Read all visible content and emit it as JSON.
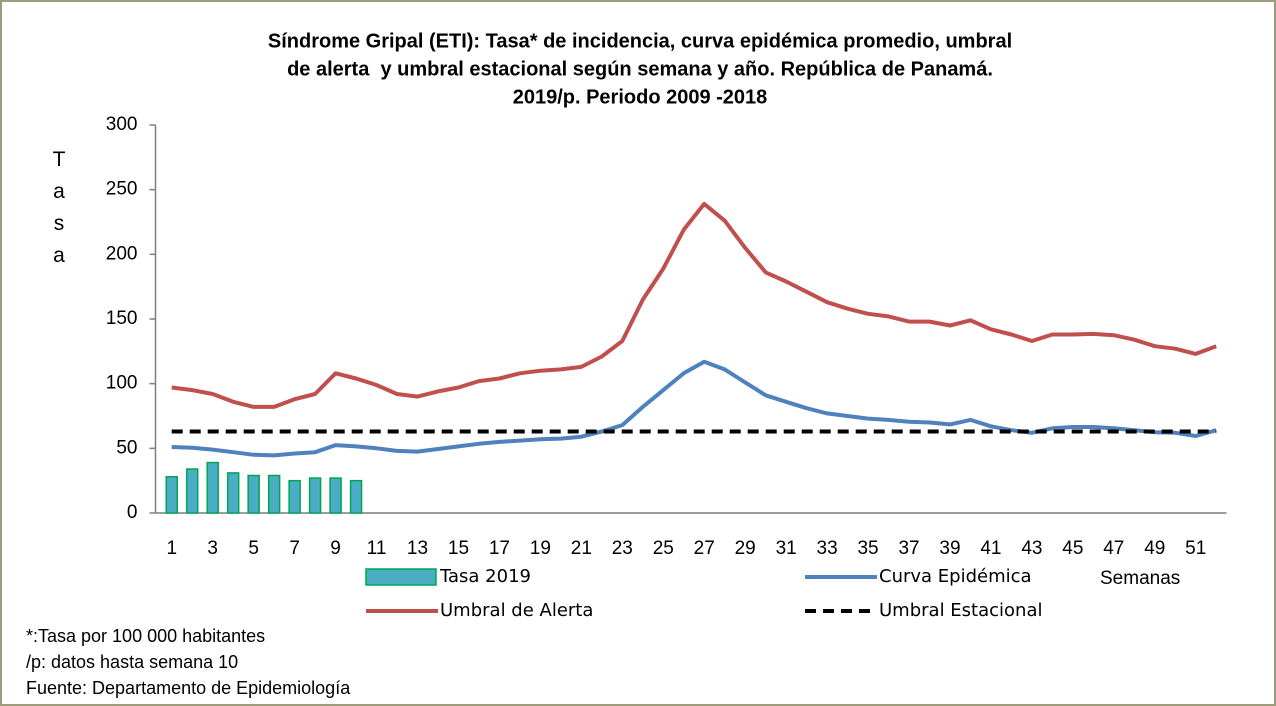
{
  "chart_data": {
    "type": "line",
    "title": [
      "Síndrome Gripal (ETI): Tasa* de incidencia, curva epidémica promedio, umbral",
      "de alerta  y umbral estacional según semana y año. República de Panamá.",
      "2019/p. Periodo 2009 -2018"
    ],
    "y_label": "Tasa",
    "x_label": "Semanas",
    "notes": [
      "*:Tasa por 100 000 habitantes",
      "/p: datos hasta semana 10",
      "Fuente: Departamento de Epidemiología"
    ],
    "categories": [
      1,
      null,
      3,
      null,
      5,
      null,
      7,
      null,
      9,
      null,
      11,
      null,
      13,
      null,
      15,
      null,
      17,
      null,
      19,
      null,
      21,
      null,
      23,
      null,
      25,
      null,
      27,
      null,
      29,
      null,
      31,
      null,
      33,
      null,
      35,
      null,
      37,
      null,
      39,
      null,
      41,
      null,
      43,
      null,
      45,
      null,
      47,
      null,
      49,
      null,
      51,
      null
    ],
    "ylim": [
      0,
      300
    ],
    "yticks": [
      0,
      50,
      100,
      150,
      200,
      250,
      300
    ],
    "series": [
      {
        "name": "Tasa 2019",
        "type": "bar",
        "color": "#4bacc6",
        "edge_color": "#00a651",
        "values": [
          28,
          34,
          39,
          31,
          29,
          29,
          25,
          27,
          27,
          25,
          null,
          null,
          null,
          null,
          null,
          null,
          null,
          null,
          null,
          null,
          null,
          null,
          null,
          null,
          null,
          null,
          null,
          null,
          null,
          null,
          null,
          null,
          null,
          null,
          null,
          null,
          null,
          null,
          null,
          null,
          null,
          null,
          null,
          null,
          null,
          null,
          null,
          null,
          null,
          null,
          null,
          null
        ]
      },
      {
        "name": "Curva Epidémica",
        "type": "line",
        "color": "#4f81bd",
        "values": [
          51,
          50.5,
          49,
          47,
          45,
          44.5,
          46,
          47,
          52.5,
          51.5,
          50,
          48,
          47.5,
          49.5,
          51.5,
          53.5,
          55,
          56,
          57,
          57.5,
          59,
          63,
          68,
          82,
          95,
          108,
          117,
          111,
          101,
          91,
          86,
          81,
          77,
          75,
          73,
          72,
          70.5,
          70,
          68.5,
          72,
          67,
          64,
          62,
          65.5,
          66.5,
          66.5,
          65.5,
          64,
          62.5,
          62,
          59.5,
          64
        ]
      },
      {
        "name": "Umbral de Alerta",
        "type": "line",
        "color": "#c0504d",
        "values": [
          97,
          95,
          92,
          86,
          82,
          82,
          88,
          92,
          108,
          104,
          99,
          92,
          90,
          94,
          97,
          102,
          104,
          108,
          110,
          111,
          113,
          121,
          133,
          165,
          189,
          219,
          239,
          226,
          205,
          186,
          179,
          171,
          163,
          158,
          154,
          152,
          148,
          148,
          145,
          149,
          142,
          138,
          133,
          138,
          138,
          138.5,
          137.5,
          134,
          129,
          127,
          123,
          129
        ]
      },
      {
        "name": "Umbral Estacional",
        "type": "line",
        "color": "#000000",
        "dashed": true,
        "values": [
          63,
          63,
          63,
          63,
          63,
          63,
          63,
          63,
          63,
          63,
          63,
          63,
          63,
          63,
          63,
          63,
          63,
          63,
          63,
          63,
          63,
          63,
          63,
          63,
          63,
          63,
          63,
          63,
          63,
          63,
          63,
          63,
          63,
          63,
          63,
          63,
          63,
          63,
          63,
          63,
          63,
          63,
          63,
          63,
          63,
          63,
          63,
          63,
          63,
          63,
          63,
          63
        ]
      }
    ]
  }
}
